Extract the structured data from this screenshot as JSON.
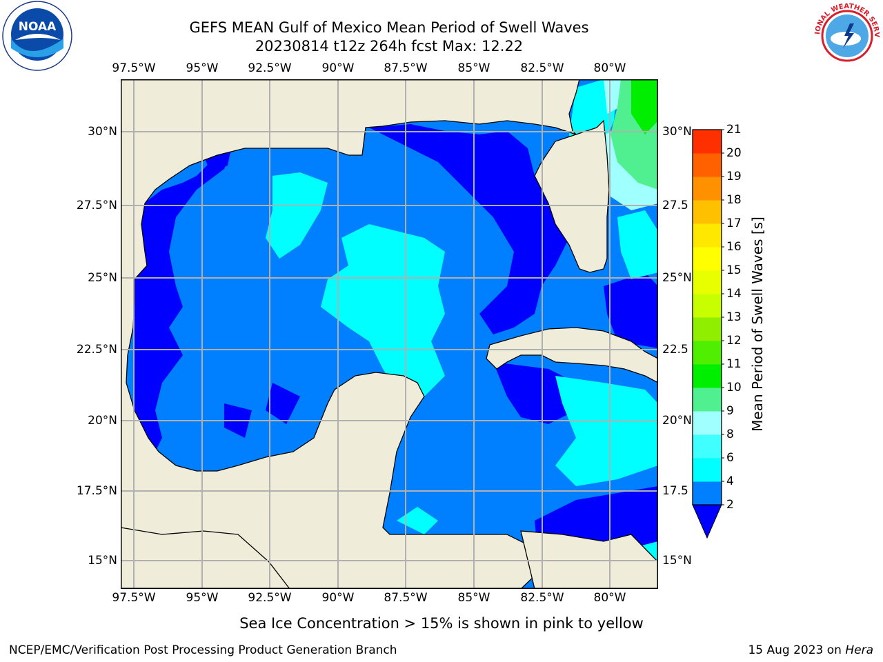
{
  "header": {
    "title_line1": "GEFS MEAN Gulf of Mexico Mean Period of Swell Waves",
    "title_line2": "20230814 t12z 264h fcst   Max: 12.22"
  },
  "logos": {
    "left": "noaa-logo",
    "right": "nws-logo",
    "noaa_text": "NOAA",
    "nws_text": "NATIONAL WEATHER SERVICE"
  },
  "map": {
    "lon_labels": [
      "97.5°W",
      "95°W",
      "92.5°W",
      "90°W",
      "87.5°W",
      "85°W",
      "82.5°W",
      "80°W"
    ],
    "lat_labels_left": [
      "30°N",
      "27.5°N",
      "25°N",
      "22.5°N",
      "20°N",
      "17.5°N",
      "15°N"
    ],
    "lat_labels_right": [
      "30°N",
      "27.5",
      "25°N",
      "22.5",
      "20°N",
      "17.5",
      "15°N"
    ],
    "colors": {
      "land": "#efedd9",
      "grid": "#b0b0b0",
      "coast": "#000000"
    }
  },
  "colorbar": {
    "label": "Mean Period of Swell Waves [s]",
    "ticks": [
      "2",
      "4",
      "6",
      "8",
      "9",
      "10",
      "11",
      "12",
      "13",
      "14",
      "15",
      "16",
      "17",
      "18",
      "19",
      "20",
      "21"
    ],
    "colors": [
      "#0080ff",
      "#00ffff",
      "#40ffff",
      "#a0ffff",
      "#50f090",
      "#00ee00",
      "#50ee00",
      "#90ee00",
      "#c8ff00",
      "#e8ff00",
      "#ffff00",
      "#ffe800",
      "#ffc000",
      "#ff9000",
      "#ff6000",
      "#ff3000"
    ],
    "extend_color": "#0000ff"
  },
  "footer": {
    "note": "Sea Ice Concentration > 15% is shown in pink to yellow",
    "credit_left": "NCEP/EMC/Verification Post Processing Product Generation Branch",
    "credit_right_prefix": "15 Aug 2023 on ",
    "credit_right_machine": "Hera"
  }
}
